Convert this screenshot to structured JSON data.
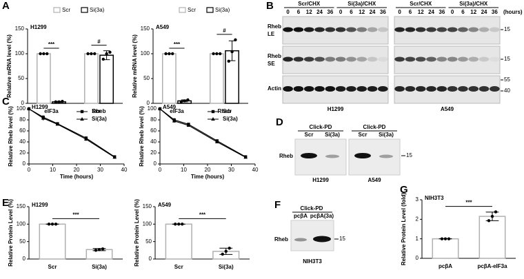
{
  "panels": [
    "A",
    "B",
    "C",
    "D",
    "E",
    "F",
    "G"
  ],
  "chart_data": [
    {
      "type": "bar",
      "subtitle": "H1299",
      "ylabel": "Relative mRNA level (%)",
      "categories": [
        "eIF3a",
        "Rheb"
      ],
      "series": [
        {
          "name": "Scr",
          "color": "#b0b0b0",
          "values": [
            100,
            100
          ],
          "errors": [
            0,
            0
          ],
          "points": [
            [
              100,
              100,
              100
            ],
            [
              100,
              100,
              100
            ]
          ]
        },
        {
          "name": "Si(3a)",
          "color": "#000000",
          "values": [
            3,
            97
          ],
          "errors": [
            1,
            9
          ],
          "points": [
            [
              3,
              3,
              4
            ],
            [
              89,
              100,
              103
            ]
          ]
        }
      ],
      "ylim": [
        0,
        150
      ],
      "yticks": [
        0,
        50,
        100,
        150
      ],
      "annotations": [
        "***",
        "#"
      ],
      "point_color": "#000000"
    },
    {
      "type": "bar",
      "subtitle": "A549",
      "ylabel": "Relative mRNA level (%)",
      "categories": [
        "eIF3a",
        "Rheb"
      ],
      "series": [
        {
          "name": "Scr",
          "color": "#b0b0b0",
          "values": [
            100,
            100
          ],
          "errors": [
            0,
            0
          ],
          "points": [
            [
              100,
              100,
              100
            ],
            [
              100,
              100,
              100
            ]
          ]
        },
        {
          "name": "Si(3a)",
          "color": "#000000",
          "values": [
            5,
            106
          ],
          "errors": [
            2,
            20
          ],
          "points": [
            [
              3,
              5,
              7
            ],
            [
              85,
              104,
              128
            ]
          ]
        }
      ],
      "ylim": [
        0,
        150
      ],
      "yticks": [
        0,
        50,
        100,
        150
      ],
      "annotations": [
        "***",
        "#"
      ],
      "point_color": "#000000"
    },
    {
      "type": "line",
      "subtitle": "H1299",
      "xlabel": "Time (hours)",
      "ylabel": "Relative Rheb level (%)",
      "x": [
        0,
        6,
        12,
        24,
        36
      ],
      "series": [
        {
          "name": "Scr",
          "color": "#000000",
          "marker": "square",
          "values": [
            100,
            85,
            73,
            47,
            13
          ],
          "errors": [
            0,
            3,
            2,
            3,
            1
          ]
        },
        {
          "name": "Si(3a)",
          "color": "#000000",
          "marker": "triangle",
          "values": [
            100,
            83,
            72,
            45,
            12
          ],
          "errors": [
            0,
            4,
            2,
            3,
            1
          ]
        }
      ],
      "xlim": [
        0,
        40
      ],
      "xticks": [
        0,
        10,
        20,
        30,
        40
      ],
      "ylim": [
        0,
        100
      ],
      "yticks": [
        0,
        20,
        40,
        60,
        80,
        100
      ]
    },
    {
      "type": "line",
      "subtitle": "A549",
      "xlabel": "Time (hours)",
      "ylabel": "Relative Rheb level (%)",
      "x": [
        0,
        6,
        12,
        24,
        36
      ],
      "series": [
        {
          "name": "Scr",
          "color": "#000000",
          "marker": "square",
          "values": [
            100,
            80,
            72,
            42,
            13
          ],
          "errors": [
            0,
            3,
            2,
            2,
            1
          ]
        },
        {
          "name": "Si(3a)",
          "color": "#000000",
          "marker": "triangle",
          "values": [
            100,
            78,
            70,
            40,
            12
          ],
          "errors": [
            0,
            3,
            2,
            2,
            1
          ]
        }
      ],
      "xlim": [
        0,
        40
      ],
      "xticks": [
        0,
        10,
        20,
        30,
        40
      ],
      "ylim": [
        0,
        100
      ],
      "yticks": [
        0,
        20,
        40,
        60,
        80,
        100
      ]
    },
    {
      "type": "bar",
      "subtitle": "H1299",
      "ylabel": "Relative Protein Level (%)",
      "categories": [
        "Scr",
        "Si(3a)"
      ],
      "color": "#b0b0b0",
      "values": [
        100,
        27
      ],
      "errors": [
        0,
        3
      ],
      "points": [
        [
          100,
          100,
          100
        ],
        [
          25,
          27,
          29
        ]
      ],
      "ylim": [
        0,
        150
      ],
      "yticks": [
        0,
        50,
        100,
        150
      ],
      "annotations": [
        "***"
      ],
      "point_color": "#000000"
    },
    {
      "type": "bar",
      "subtitle": "A549",
      "ylabel": "Relative Protein Level (%)",
      "categories": [
        "Scr",
        "Si(3a)"
      ],
      "color": "#b0b0b0",
      "values": [
        100,
        22
      ],
      "errors": [
        0,
        9
      ],
      "points": [
        [
          100,
          100,
          100
        ],
        [
          14,
          22,
          31
        ]
      ],
      "ylim": [
        0,
        150
      ],
      "yticks": [
        0,
        50,
        100,
        150
      ],
      "annotations": [
        "***"
      ],
      "point_color": "#000000"
    },
    {
      "type": "bar",
      "subtitle": "NIH3T3",
      "ylabel": "Relative Protein Level (fold)",
      "categories": [
        "pcβA",
        "pcβA-eIF3a"
      ],
      "color": "#b0b0b0",
      "values": [
        1,
        2.15
      ],
      "errors": [
        0,
        0.22
      ],
      "points": [
        [
          1,
          1,
          1
        ],
        [
          1.93,
          2.15,
          2.38
        ]
      ],
      "ylim": [
        0,
        3
      ],
      "yticks": [
        0,
        1,
        2,
        3
      ],
      "annotations": [
        "***"
      ],
      "point_color": "#000000"
    }
  ],
  "blot_b": {
    "headers": [
      "Scr/CHX",
      "Si(3a)/CHX"
    ],
    "times": [
      "0",
      "6",
      "12",
      "24",
      "36"
    ],
    "unit": "(hours)",
    "rows": [
      [
        "Rheb",
        "LE"
      ],
      [
        "Rheb",
        "SE"
      ],
      [
        "Actin"
      ]
    ],
    "markers": [
      "15",
      "15",
      "55",
      "40"
    ],
    "cells": [
      "H1299",
      "A549"
    ]
  },
  "blot_d": {
    "header": "Click-PD",
    "lanes": [
      "Scr",
      "Si(3a)"
    ],
    "row": "Rheb",
    "marker": "15",
    "cells": [
      "H1299",
      "A549"
    ]
  },
  "blot_f": {
    "header": "Click-PD",
    "lanes": [
      "pcβA",
      "pcβA(3a)"
    ],
    "row": "Rheb",
    "marker": "15",
    "cell": "NIH3T3"
  }
}
